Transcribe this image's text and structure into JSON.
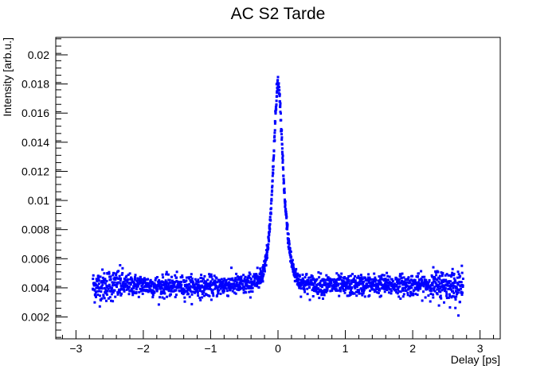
{
  "chart_data": {
    "type": "scatter",
    "title": "AC S2 Tarde",
    "xlabel": "Delay [ps]",
    "ylabel": "Intensity [arb.u.]",
    "xlim": [
      -3.3,
      3.3
    ],
    "ylim": [
      0.0005,
      0.0212
    ],
    "x_ticks": [
      {
        "value": -3,
        "label": "−3"
      },
      {
        "value": -2,
        "label": "−2"
      },
      {
        "value": -1,
        "label": "−1"
      },
      {
        "value": 0,
        "label": "0"
      },
      {
        "value": 1,
        "label": "1"
      },
      {
        "value": 2,
        "label": "2"
      },
      {
        "value": 3,
        "label": "3"
      }
    ],
    "y_ticks": [
      {
        "value": 0.002,
        "label": "0.002"
      },
      {
        "value": 0.004,
        "label": "0.004"
      },
      {
        "value": 0.006,
        "label": "0.006"
      },
      {
        "value": 0.008,
        "label": "0.008"
      },
      {
        "value": 0.01,
        "label": "0.01"
      },
      {
        "value": 0.012,
        "label": "0.012"
      },
      {
        "value": 0.014,
        "label": "0.014"
      },
      {
        "value": 0.016,
        "label": "0.016"
      },
      {
        "value": 0.018,
        "label": "0.018"
      },
      {
        "value": 0.02,
        "label": "0.02"
      }
    ],
    "grid": false,
    "legend": "none",
    "marker_color": "#0000ff",
    "series": [
      {
        "x": [
          -2.75,
          -2.5,
          -2.25,
          -2.0,
          -1.75,
          -1.5,
          -1.25,
          -1.0,
          -0.75,
          -0.5,
          -0.4,
          -0.3,
          -0.25,
          -0.2,
          -0.15,
          -0.1,
          -0.08,
          -0.06,
          -0.04,
          -0.02,
          0.0,
          0.02,
          0.04,
          0.06,
          0.08,
          0.1,
          0.15,
          0.2,
          0.25,
          0.3,
          0.4,
          0.5,
          0.75,
          1.0,
          1.25,
          1.5,
          1.75,
          2.0,
          2.25,
          2.5,
          2.75
        ],
        "y": [
          0.0041,
          0.0042,
          0.0042,
          0.0042,
          0.0041,
          0.0041,
          0.0041,
          0.0041,
          0.0042,
          0.0042,
          0.0043,
          0.0045,
          0.0048,
          0.0055,
          0.0068,
          0.0095,
          0.0115,
          0.0135,
          0.0155,
          0.0172,
          0.0182,
          0.0175,
          0.0158,
          0.0138,
          0.0118,
          0.01,
          0.0075,
          0.0058,
          0.0049,
          0.0045,
          0.0043,
          0.0042,
          0.0042,
          0.0041,
          0.0042,
          0.0042,
          0.0042,
          0.0042,
          0.0042,
          0.0042,
          0.0041
        ]
      }
    ]
  }
}
